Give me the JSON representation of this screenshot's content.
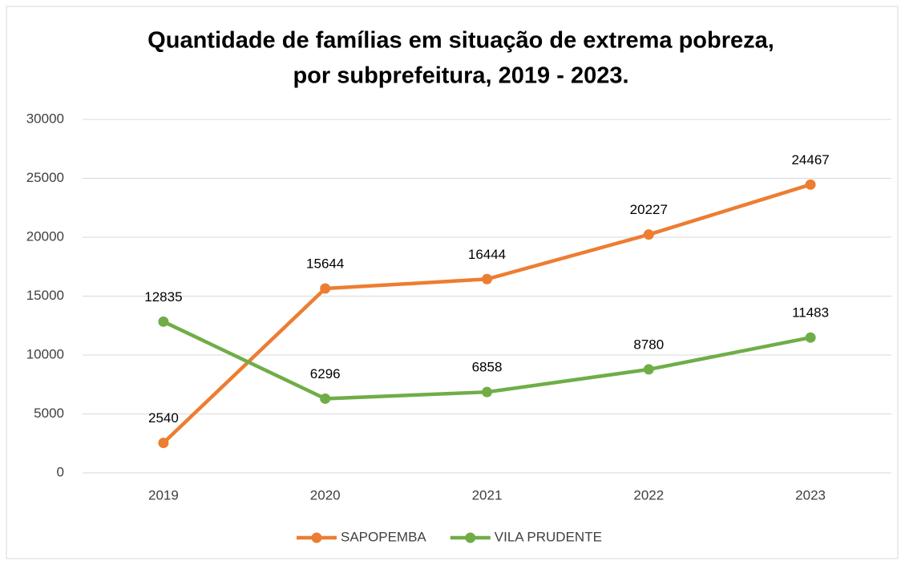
{
  "chart_data": {
    "type": "line",
    "title": [
      "Quantidade de famílias em situação de extrema pobreza,",
      "por subprefeitura, 2019 - 2023."
    ],
    "categories": [
      "2019",
      "2020",
      "2021",
      "2022",
      "2023"
    ],
    "series": [
      {
        "name": "SAPOPEMBA",
        "color": "#ed7d31",
        "values": [
          2540,
          15644,
          16444,
          20227,
          24467
        ]
      },
      {
        "name": "VILA PRUDENTE",
        "color": "#70ad47",
        "values": [
          12835,
          6296,
          6858,
          8780,
          11483
        ]
      }
    ],
    "ylim": [
      0,
      30000
    ],
    "yticks": [
      0,
      5000,
      10000,
      15000,
      20000,
      25000,
      30000
    ],
    "grid": true,
    "legend": "bottom"
  }
}
